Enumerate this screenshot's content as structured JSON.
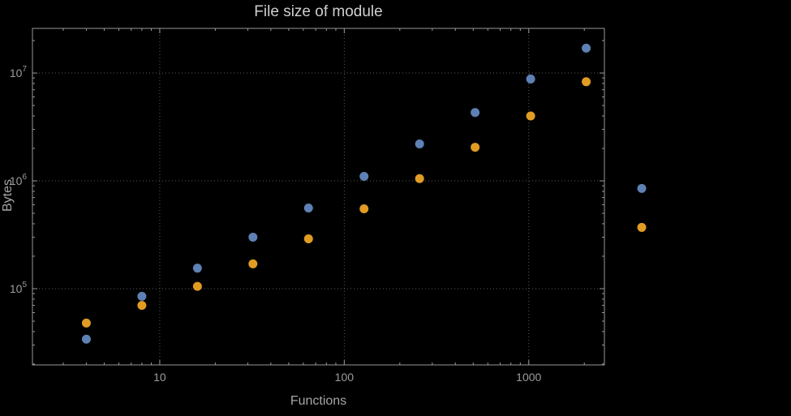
{
  "chart_data": {
    "type": "scatter",
    "title": "File size of module",
    "xlabel": "Functions",
    "ylabel": "Bytes",
    "x_scale": "log",
    "y_scale": "log",
    "grid": "dotted",
    "legend": "none",
    "background": "#000000",
    "x_ticks": [
      10,
      100,
      1000
    ],
    "y_tick_exponents": [
      5,
      6,
      7
    ],
    "xlog_range": [
      0.31,
      3.41
    ],
    "ylog_range": [
      4.293,
      7.414
    ],
    "style": {
      "frame_color": "#999999",
      "grid_color": "#5a5a5a",
      "title_color": "#cfcfcf",
      "label_color": "#a6a6a6",
      "tick_label_color": "#9c9c9c",
      "point_radius": 5.5,
      "series_colors": {
        "blue": "#5e81b5",
        "orange": "#e19c24"
      }
    },
    "series": [
      {
        "name": "blue",
        "color": "#5e81b5",
        "points": [
          [
            4,
            34000
          ],
          [
            8,
            85000
          ],
          [
            16,
            155000
          ],
          [
            32,
            300000
          ],
          [
            64,
            560000
          ],
          [
            128,
            1100000
          ],
          [
            256,
            2200000
          ],
          [
            512,
            4300000
          ],
          [
            1024,
            8800000
          ],
          [
            2048,
            17000000
          ],
          [
            4096,
            850000
          ]
        ]
      },
      {
        "name": "orange",
        "color": "#e19c24",
        "points": [
          [
            4,
            48000
          ],
          [
            8,
            70000
          ],
          [
            16,
            105000
          ],
          [
            32,
            170000
          ],
          [
            64,
            290000
          ],
          [
            128,
            550000
          ],
          [
            256,
            1050000
          ],
          [
            512,
            2050000
          ],
          [
            1024,
            4000000
          ],
          [
            2048,
            8300000
          ],
          [
            4096,
            370000
          ]
        ]
      }
    ]
  }
}
